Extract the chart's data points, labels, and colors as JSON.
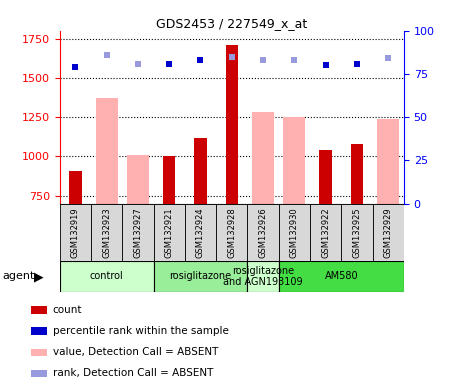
{
  "title": "GDS2453 / 227549_x_at",
  "samples": [
    "GSM132919",
    "GSM132923",
    "GSM132927",
    "GSM132921",
    "GSM132924",
    "GSM132928",
    "GSM132926",
    "GSM132930",
    "GSM132922",
    "GSM132925",
    "GSM132929"
  ],
  "count_values": [
    910,
    null,
    null,
    1005,
    1120,
    1710,
    null,
    null,
    1040,
    1080,
    null
  ],
  "value_absent": [
    null,
    1370,
    1010,
    null,
    null,
    null,
    1285,
    1250,
    null,
    null,
    1240
  ],
  "rank_values": [
    79,
    84,
    80,
    81,
    83,
    85,
    82,
    82,
    80,
    81,
    83
  ],
  "rank_absent": [
    null,
    86,
    81,
    null,
    null,
    85,
    83,
    83,
    null,
    null,
    84
  ],
  "ylim_left": [
    700,
    1800
  ],
  "ylim_right": [
    0,
    100
  ],
  "yticks_left": [
    750,
    1000,
    1250,
    1500,
    1750
  ],
  "yticks_right": [
    0,
    25,
    50,
    75,
    100
  ],
  "groups": [
    {
      "label": "control",
      "start": 0,
      "end": 3,
      "color": "#ccffcc"
    },
    {
      "label": "rosiglitazone",
      "start": 3,
      "end": 6,
      "color": "#99ee99"
    },
    {
      "label": "rosiglitazone\nand AGN193109",
      "start": 6,
      "end": 7,
      "color": "#ccffcc"
    },
    {
      "label": "AM580",
      "start": 7,
      "end": 11,
      "color": "#44dd44"
    }
  ],
  "count_color": "#cc0000",
  "absent_value_color": "#ffb0b0",
  "rank_color": "#0000cc",
  "absent_rank_color": "#9999dd",
  "plot_bg": "#ffffff",
  "sample_box_color": "#d8d8d8",
  "legend_items": [
    {
      "color": "#cc0000",
      "shape": "square",
      "label": "count"
    },
    {
      "color": "#0000cc",
      "shape": "square",
      "label": "percentile rank within the sample"
    },
    {
      "color": "#ffb0b0",
      "shape": "square",
      "label": "value, Detection Call = ABSENT"
    },
    {
      "color": "#9999dd",
      "shape": "square",
      "label": "rank, Detection Call = ABSENT"
    }
  ]
}
